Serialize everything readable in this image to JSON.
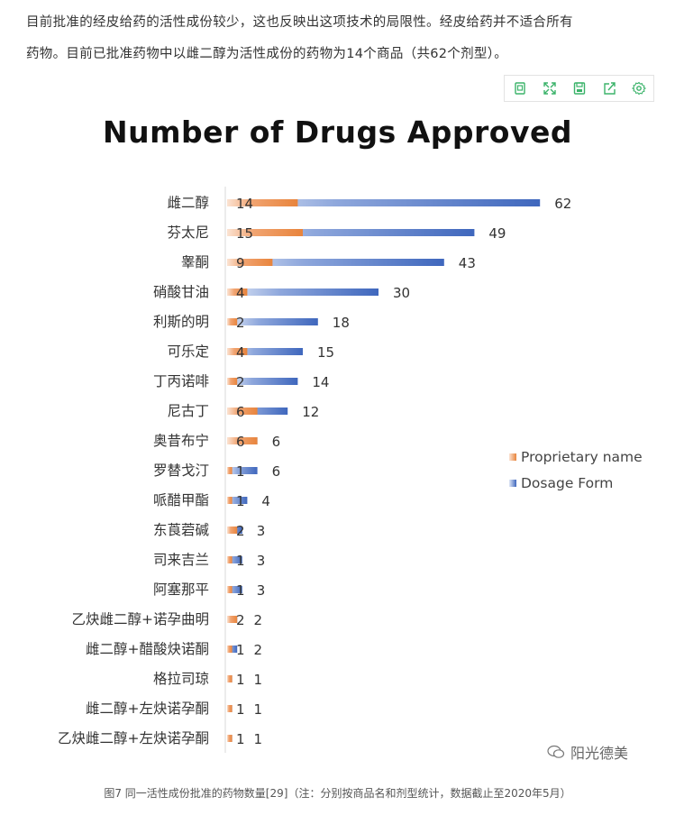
{
  "intro": {
    "line1": "目前批准的经皮给药的活性成份较少，这也反映出这项技术的局限性。经皮给药并不适合所有",
    "line2": "药物。目前已批准药物中以雌二醇为活性成份的药物为14个商品（共62个剂型）。"
  },
  "toolbar": {
    "icons": [
      "copy-icon",
      "fullscreen-icon",
      "save-icon",
      "share-icon",
      "settings-icon"
    ],
    "color": "#3bb36a"
  },
  "chart_data": {
    "type": "bar",
    "orientation": "horizontal",
    "title": "Number of Drugs Approved",
    "categories": [
      "雌二醇",
      "芬太尼",
      "睾酮",
      "硝酸甘油",
      "利斯的明",
      "可乐定",
      "丁丙诺啡",
      "尼古丁",
      "奥昔布宁",
      "罗替戈汀",
      "哌醋甲酯",
      "东莨菪碱",
      "司来吉兰",
      "阿塞那平",
      "乙炔雌二醇+诺孕曲明",
      "雌二醇+醋酸炔诺酮",
      "格拉司琼",
      "雌二醇+左炔诺孕酮",
      "乙炔雌二醇+左炔诺孕酮"
    ],
    "series": [
      {
        "name": "Proprietary name",
        "color": "#e8843c",
        "values": [
          14,
          15,
          9,
          4,
          2,
          4,
          2,
          6,
          6,
          1,
          1,
          2,
          1,
          1,
          2,
          1,
          1,
          1,
          1
        ]
      },
      {
        "name": "Dosage Form",
        "color": "#4a72c4",
        "values": [
          62,
          49,
          43,
          30,
          18,
          15,
          14,
          12,
          6,
          6,
          4,
          3,
          3,
          3,
          2,
          2,
          1,
          1,
          1
        ]
      }
    ],
    "legend_position": "right",
    "grid": false
  },
  "caption": "图7 同一活性成份批准的药物数量[29]（注：分别按商品名和剂型统计，数据截止至2020年5月）",
  "watermark": "阳光德美"
}
